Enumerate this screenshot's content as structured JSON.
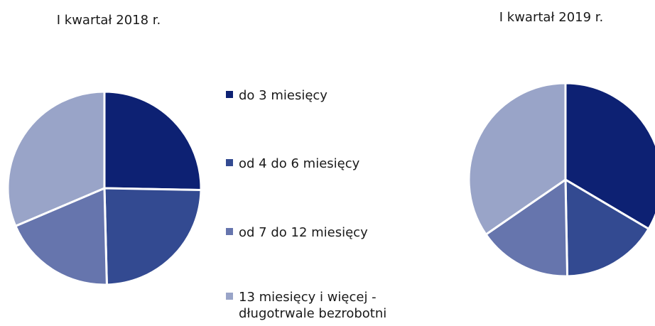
{
  "chart_data": [
    {
      "type": "pie",
      "title": "I kwartał 2018 r.",
      "categories": [
        "do 3 miesięcy",
        "od 4 do 6 miesięcy",
        "od 7 do 12 miesięcy",
        "13 miesięcy i więcej - długotrwale bezrobotni"
      ],
      "values": [
        25.3,
        24.3,
        19.0,
        31.4
      ],
      "colors": [
        "#0d2173",
        "#334a91",
        "#6675ad",
        "#99a4c8"
      ],
      "start_direction": "12 o'clock",
      "direction": "clockwise"
    },
    {
      "type": "pie",
      "title": "I kwartał 2019 r.",
      "categories": [
        "do 3 miesięcy",
        "od 4 do 6 miesięcy",
        "od 7 do 12 miesięcy",
        "13 miesięcy i więcej - długotrwale bezrobotni"
      ],
      "values": [
        33.5,
        16.2,
        15.7,
        34.6
      ],
      "colors": [
        "#0d2173",
        "#334a91",
        "#6675ad",
        "#99a4c8"
      ],
      "start_direction": "12 o'clock",
      "direction": "clockwise"
    }
  ],
  "legend": {
    "placement": "center",
    "items": [
      {
        "label_lines": [
          "do 3 miesięcy"
        ],
        "color": "#0d2173"
      },
      {
        "label_lines": [
          "od 4 do 6 miesięcy"
        ],
        "color": "#334a91"
      },
      {
        "label_lines": [
          "od 7 do 12 miesięcy"
        ],
        "color": "#6675ad"
      },
      {
        "label_lines": [
          "13 miesięcy i więcej -",
          "długotrwale bezrobotni"
        ],
        "color": "#99a4c8"
      }
    ]
  },
  "style": {
    "slice_border_color": "#ffffff",
    "text_color": "#1a1a1a"
  }
}
